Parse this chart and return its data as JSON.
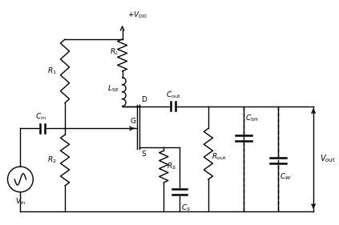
{
  "bg_color": "#ffffff",
  "line_color": "#000000",
  "lw": 1.0,
  "fig_width": 4.23,
  "fig_height": 2.81,
  "dpi": 100,
  "xlim": [
    0,
    105
  ],
  "ylim": [
    0,
    70
  ]
}
